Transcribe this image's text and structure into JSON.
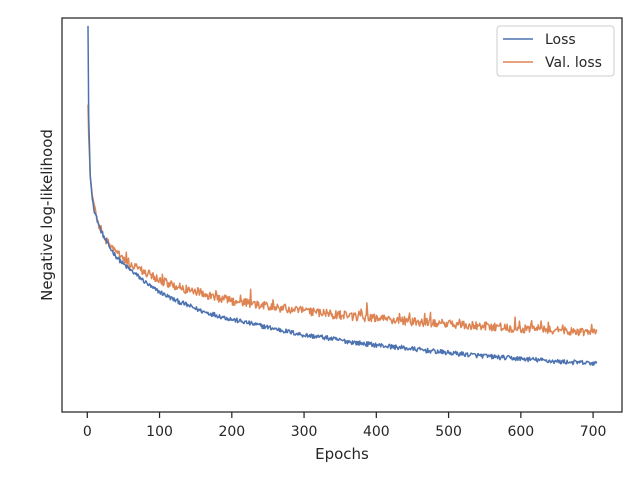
{
  "chart_data": {
    "type": "line",
    "title": "",
    "xlabel": "Epochs",
    "ylabel": "Negative log-likelihood",
    "xlim": [
      -35,
      740
    ],
    "xticks": [
      0,
      100,
      200,
      300,
      400,
      500,
      600,
      700
    ],
    "ylim": [
      0,
      1
    ],
    "y_ticks_shown": false,
    "grid": false,
    "legend": {
      "placement": "top-right"
    },
    "series": [
      {
        "name": "Loss",
        "color": "#4c72b0",
        "points": [
          [
            1,
            0.98
          ],
          [
            2,
            0.75
          ],
          [
            4,
            0.6
          ],
          [
            7,
            0.54
          ],
          [
            10,
            0.51
          ],
          [
            15,
            0.48
          ],
          [
            20,
            0.455
          ],
          [
            30,
            0.42
          ],
          [
            40,
            0.395
          ],
          [
            50,
            0.375
          ],
          [
            60,
            0.36
          ],
          [
            70,
            0.345
          ],
          [
            80,
            0.33
          ],
          [
            90,
            0.315
          ],
          [
            100,
            0.305
          ],
          [
            120,
            0.285
          ],
          [
            140,
            0.27
          ],
          [
            160,
            0.255
          ],
          [
            180,
            0.245
          ],
          [
            200,
            0.235
          ],
          [
            225,
            0.225
          ],
          [
            250,
            0.215
          ],
          [
            275,
            0.205
          ],
          [
            300,
            0.195
          ],
          [
            325,
            0.19
          ],
          [
            350,
            0.182
          ],
          [
            375,
            0.175
          ],
          [
            400,
            0.17
          ],
          [
            425,
            0.165
          ],
          [
            450,
            0.16
          ],
          [
            475,
            0.155
          ],
          [
            500,
            0.15
          ],
          [
            525,
            0.146
          ],
          [
            550,
            0.142
          ],
          [
            575,
            0.138
          ],
          [
            600,
            0.135
          ],
          [
            625,
            0.132
          ],
          [
            650,
            0.128
          ],
          [
            675,
            0.126
          ],
          [
            705,
            0.123
          ]
        ]
      },
      {
        "name": "Val. loss",
        "color": "#dd8452",
        "points": [
          [
            1,
            0.78
          ],
          [
            2,
            0.7
          ],
          [
            4,
            0.6
          ],
          [
            7,
            0.55
          ],
          [
            10,
            0.52
          ],
          [
            15,
            0.48
          ],
          [
            20,
            0.455
          ],
          [
            30,
            0.425
          ],
          [
            40,
            0.405
          ],
          [
            50,
            0.39
          ],
          [
            60,
            0.375
          ],
          [
            70,
            0.365
          ],
          [
            80,
            0.355
          ],
          [
            90,
            0.345
          ],
          [
            100,
            0.335
          ],
          [
            120,
            0.32
          ],
          [
            140,
            0.31
          ],
          [
            160,
            0.3
          ],
          [
            180,
            0.29
          ],
          [
            200,
            0.282
          ],
          [
            225,
            0.275
          ],
          [
            250,
            0.268
          ],
          [
            275,
            0.262
          ],
          [
            300,
            0.256
          ],
          [
            325,
            0.25
          ],
          [
            350,
            0.246
          ],
          [
            375,
            0.242
          ],
          [
            400,
            0.238
          ],
          [
            425,
            0.234
          ],
          [
            450,
            0.23
          ],
          [
            475,
            0.226
          ],
          [
            500,
            0.223
          ],
          [
            525,
            0.22
          ],
          [
            550,
            0.218
          ],
          [
            575,
            0.215
          ],
          [
            600,
            0.212
          ],
          [
            625,
            0.21
          ],
          [
            650,
            0.208
          ],
          [
            675,
            0.206
          ],
          [
            705,
            0.2
          ]
        ]
      }
    ]
  }
}
